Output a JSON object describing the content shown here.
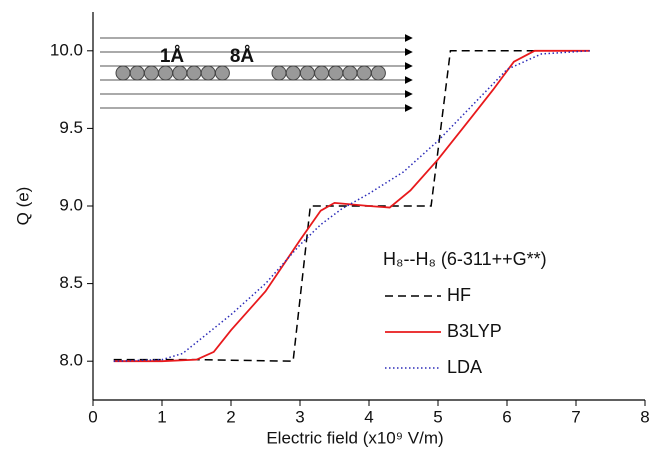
{
  "chart_data": {
    "type": "line",
    "xlabel": "Electric field (x10⁹ V/m)",
    "ylabel": "Q (e)",
    "xlim": [
      0,
      8
    ],
    "ylim": [
      7.75,
      10.25
    ],
    "xticks": [
      0,
      1,
      2,
      3,
      4,
      5,
      6,
      7,
      8
    ],
    "yticks": [
      {
        "value": 8,
        "label": "8.0"
      },
      {
        "value": 8.5,
        "label": "8.5"
      },
      {
        "value": 9,
        "label": "9.0"
      },
      {
        "value": 9.5,
        "label": "9.5"
      },
      {
        "value": 10,
        "label": "10.0"
      }
    ],
    "legend_title": "H₈--H₈ (6-311++G**)",
    "legend_position": "lower right",
    "annotations": [
      "1Å",
      "8Å"
    ],
    "series": [
      {
        "name": "HF",
        "color": "#000000",
        "style": "dashed",
        "x": [
          0.3,
          1.5,
          2.9,
          3.15,
          4.9,
          5.18,
          7.2
        ],
        "values": [
          8.01,
          8.01,
          8.0,
          9.0,
          9.0,
          10.0,
          10.0
        ]
      },
      {
        "name": "B3LYP",
        "color": "#e8191c",
        "style": "solid",
        "x": [
          0.3,
          1.0,
          1.5,
          1.75,
          2.0,
          2.5,
          3.0,
          3.3,
          3.5,
          4.0,
          4.3,
          4.6,
          5.0,
          5.5,
          5.8,
          6.1,
          6.4,
          7.2
        ],
        "values": [
          8.0,
          8.0,
          8.01,
          8.06,
          8.2,
          8.45,
          8.78,
          8.97,
          9.02,
          9.0,
          8.99,
          9.1,
          9.3,
          9.58,
          9.75,
          9.93,
          10.0,
          10.0
        ]
      },
      {
        "name": "LDA",
        "color": "#2b2bb8",
        "style": "dotted",
        "x": [
          0.3,
          1.0,
          1.3,
          2.0,
          2.5,
          3.0,
          3.3,
          3.6,
          4.0,
          4.5,
          5.0,
          5.5,
          6.0,
          6.5,
          7.2
        ],
        "values": [
          8.0,
          8.01,
          8.05,
          8.3,
          8.5,
          8.75,
          8.88,
          8.98,
          9.08,
          9.22,
          9.42,
          9.65,
          9.88,
          9.98,
          10.0
        ]
      }
    ]
  }
}
